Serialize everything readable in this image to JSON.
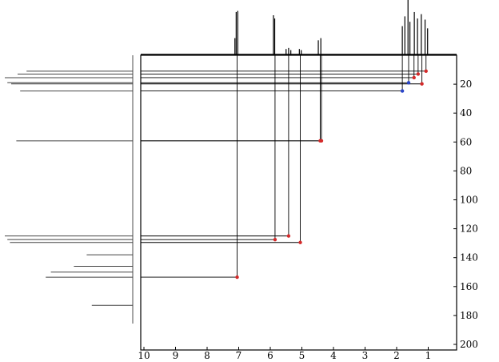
{
  "chart_data": {
    "type": "scatter",
    "subtype": "2D NMR HSQC correlation spectrum",
    "title": "",
    "xlabel": "",
    "ylabel": "",
    "xlim": [
      10,
      0
    ],
    "ylim": [
      0,
      200
    ],
    "x_ticks": [
      "10",
      "9",
      "8",
      "7",
      "6",
      "5",
      "4",
      "3",
      "2",
      "1"
    ],
    "y_ticks": [
      "20",
      "40",
      "60",
      "80",
      "100",
      "120",
      "140",
      "160",
      "180",
      "200"
    ],
    "grid": false,
    "legend": "none",
    "colors": {
      "red_peak": "#d42a2a",
      "blue_peak": "#2a45c8",
      "line": "#000000",
      "side_projection": "#888888"
    },
    "cross_peaks": [
      {
        "h": 7.05,
        "c": 153.5,
        "color": "red"
      },
      {
        "h": 5.85,
        "c": 127.5,
        "color": "red"
      },
      {
        "h": 5.42,
        "c": 125.0,
        "color": "red"
      },
      {
        "h": 5.05,
        "c": 129.5,
        "color": "red"
      },
      {
        "h": 4.42,
        "c": 59.2,
        "color": "red"
      },
      {
        "h": 4.38,
        "c": 59.2,
        "color": "red"
      },
      {
        "h": 1.82,
        "c": 24.7,
        "color": "blue"
      },
      {
        "h": 1.62,
        "c": 19.0,
        "color": "blue"
      },
      {
        "h": 1.45,
        "c": 15.5,
        "color": "red"
      },
      {
        "h": 1.32,
        "c": 13.0,
        "color": "red"
      },
      {
        "h": 1.2,
        "c": 19.8,
        "color": "red"
      },
      {
        "h": 1.07,
        "c": 11.0,
        "color": "red"
      }
    ],
    "h_projection": [
      {
        "ppm": 7.08,
        "height": 0.78
      },
      {
        "ppm": 7.03,
        "height": 0.8
      },
      {
        "ppm": 7.12,
        "height": 0.3
      },
      {
        "ppm": 5.9,
        "height": 0.72
      },
      {
        "ppm": 5.86,
        "height": 0.66
      },
      {
        "ppm": 5.5,
        "height": 0.1
      },
      {
        "ppm": 5.42,
        "height": 0.12
      },
      {
        "ppm": 5.35,
        "height": 0.08
      },
      {
        "ppm": 5.08,
        "height": 0.1
      },
      {
        "ppm": 5.02,
        "height": 0.08
      },
      {
        "ppm": 4.48,
        "height": 0.26
      },
      {
        "ppm": 4.4,
        "height": 0.3
      },
      {
        "ppm": 1.82,
        "height": 0.52
      },
      {
        "ppm": 1.74,
        "height": 0.7
      },
      {
        "ppm": 1.64,
        "height": 1.0
      },
      {
        "ppm": 1.58,
        "height": 0.6
      },
      {
        "ppm": 1.44,
        "height": 0.78
      },
      {
        "ppm": 1.34,
        "height": 0.66
      },
      {
        "ppm": 1.22,
        "height": 0.74
      },
      {
        "ppm": 1.1,
        "height": 0.64
      },
      {
        "ppm": 1.02,
        "height": 0.48
      }
    ],
    "c_projection": [
      {
        "ppm": 11.0,
        "height": 0.83
      },
      {
        "ppm": 13.0,
        "height": 0.9
      },
      {
        "ppm": 15.5,
        "height": 1.0
      },
      {
        "ppm": 19.0,
        "height": 0.98
      },
      {
        "ppm": 19.8,
        "height": 0.95
      },
      {
        "ppm": 24.7,
        "height": 0.88
      },
      {
        "ppm": 59.2,
        "height": 0.91
      },
      {
        "ppm": 125.0,
        "height": 1.0
      },
      {
        "ppm": 127.5,
        "height": 0.98
      },
      {
        "ppm": 129.5,
        "height": 0.96
      },
      {
        "ppm": 138.0,
        "height": 0.36
      },
      {
        "ppm": 146.0,
        "height": 0.46
      },
      {
        "ppm": 150.0,
        "height": 0.64
      },
      {
        "ppm": 153.5,
        "height": 0.68
      },
      {
        "ppm": 173.0,
        "height": 0.32
      }
    ]
  }
}
